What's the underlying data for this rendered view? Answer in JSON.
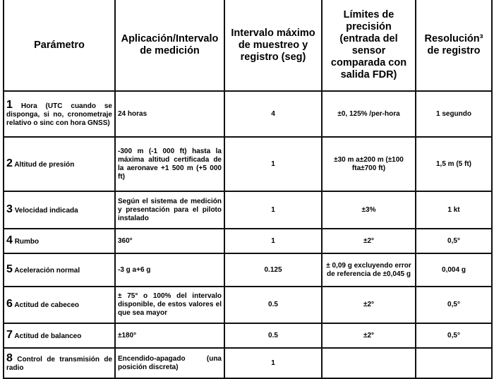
{
  "headers": [
    "Parámetro",
    "Aplicación/Intervalo de medición",
    "Intervalo máximo de muestreo y registro (seg)",
    "Límites de precisión (entrada del sensor comparada con salida FDR)",
    "Resolución³ de registro"
  ],
  "rows": [
    {
      "num": "1",
      "param": "Hora (UTC cuando se disponga, si no, cronometraje relativo o sinc con hora GNSS)",
      "range": "24 horas",
      "interval": "4",
      "precision": "±0, 125% /per-hora",
      "resolution": "1 segundo"
    },
    {
      "num": "2",
      "param": "Altitud de presión",
      "range": "-300 m (-1 000 ft) hasta la máxima altitud certificada de la aeronave +1 500 m (+5 000 ft)",
      "interval": "1",
      "precision": "±30 m a±200 m (±100 fta±700 ft)",
      "resolution": "1,5 m (5 ft)"
    },
    {
      "num": "3",
      "param": "Velocidad indicada",
      "range": "Según el sistema de medición y presentación para el piloto instalado",
      "interval": "1",
      "precision": "±3%",
      "resolution": "1 kt"
    },
    {
      "num": "4",
      "param": "Rumbo",
      "range": "360°",
      "interval": "1",
      "precision": "±2°",
      "resolution": "0,5°"
    },
    {
      "num": "5",
      "param": "Aceleración normal",
      "range": "-3 g a+6 g",
      "interval": "0.125",
      "precision": "± 0,09 g excluyendo error de referencia de ±0,045 g",
      "resolution": "0,004 g"
    },
    {
      "num": "6",
      "param": "Actitud de cabeceo",
      "range": "± 75° o 100% del intervalo disponible, de estos valores el que sea mayor",
      "interval": "0.5",
      "precision": "±2°",
      "resolution": "0,5°"
    },
    {
      "num": "7",
      "param": "Actitud de balanceo",
      "range": "±180°",
      "interval": "0.5",
      "precision": "±2°",
      "resolution": "0,5°"
    },
    {
      "num": "8",
      "param": "Control de transmisión de radio",
      "range": "Encendido-apagado (una posición discreta)",
      "interval": "1",
      "precision": "",
      "resolution": ""
    }
  ]
}
